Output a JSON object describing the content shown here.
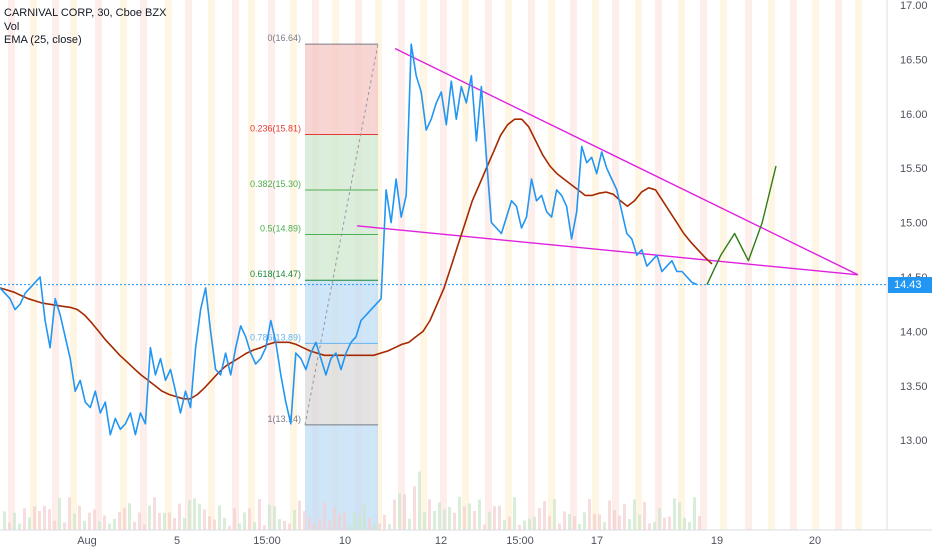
{
  "legend": {
    "title": "CARNIVAL CORP, 30, Cboe BZX",
    "volume": "Vol",
    "ema": "EMA (25, close)"
  },
  "current_price": "14.43",
  "colors": {
    "price": "#2196f3",
    "ema": "#a52a00",
    "trendline": "#e020e0",
    "projection": "#2e7d14",
    "fib_red": "#f4c7c3",
    "fib_green": "#cfe8cf",
    "fib_blue": "#bfdcf6",
    "fib_gray": "#d9d9d9"
  },
  "chart_data": {
    "type": "line",
    "title": "CARNIVAL CORP, 30, Cboe BZX",
    "ylim": [
      12.45,
      17.0
    ],
    "y_ticks": [
      "17.00",
      "16.50",
      "16.00",
      "15.50",
      "15.00",
      "14.50",
      "14.00",
      "13.50",
      "13.00"
    ],
    "x_ticks": [
      "Aug",
      "5",
      "15:00",
      "10",
      "12",
      "15:00",
      "17",
      "19",
      "20"
    ],
    "fib_levels": [
      {
        "label": "0(16.64)",
        "value": 16.64
      },
      {
        "label": "0.236(15.81)",
        "value": 15.81
      },
      {
        "label": "0.382(15.30)",
        "value": 15.3
      },
      {
        "label": "0.5(14.89)",
        "value": 14.89
      },
      {
        "label": "0.618(14.47)",
        "value": 14.47
      },
      {
        "label": "0.786(13.89)",
        "value": 13.89
      },
      {
        "label": "1(13.14)",
        "value": 13.14
      }
    ],
    "series": [
      {
        "name": "CARNIVAL CORP",
        "values": [
          14.4,
          14.35,
          14.3,
          14.2,
          14.25,
          14.35,
          14.4,
          14.45,
          14.5,
          14.1,
          13.85,
          14.3,
          14.15,
          13.95,
          13.75,
          13.45,
          13.55,
          13.35,
          13.3,
          13.45,
          13.25,
          13.35,
          13.05,
          13.2,
          13.1,
          13.15,
          13.25,
          13.05,
          13.25,
          13.15,
          13.85,
          13.6,
          13.75,
          13.55,
          13.65,
          13.45,
          13.25,
          13.45,
          13.3,
          13.85,
          14.2,
          14.4,
          14.0,
          13.65,
          13.6,
          13.8,
          13.6,
          13.85,
          14.05,
          13.95,
          13.8,
          13.7,
          13.75,
          13.85,
          14.1,
          13.9,
          13.6,
          13.35,
          13.15,
          13.8,
          13.75,
          13.65,
          13.8,
          13.9,
          13.75,
          13.6,
          13.75,
          13.8,
          13.65,
          13.8,
          13.9,
          13.95,
          14.1,
          14.15,
          14.2,
          14.25,
          14.3,
          15.3,
          15.0,
          15.4,
          15.05,
          15.25,
          16.64,
          16.35,
          16.2,
          15.85,
          15.95,
          16.1,
          16.2,
          15.9,
          16.3,
          15.95,
          16.25,
          16.1,
          16.35,
          15.75,
          16.25,
          15.6,
          15.0,
          14.95,
          14.9,
          15.05,
          15.2,
          15.15,
          14.95,
          15.05,
          15.4,
          15.2,
          15.25,
          15.1,
          15.05,
          15.3,
          15.25,
          15.15,
          14.85,
          15.1,
          15.7,
          15.55,
          15.6,
          15.45,
          15.65,
          15.5,
          15.4,
          15.3,
          15.1,
          14.9,
          14.85,
          14.7,
          14.75,
          14.6,
          14.65,
          14.7,
          14.55,
          14.6,
          14.65,
          14.55,
          14.55,
          14.5,
          14.45,
          14.43
        ]
      },
      {
        "name": "EMA (25, close)",
        "values": [
          14.4,
          14.38,
          14.36,
          14.33,
          14.3,
          14.28,
          14.26,
          14.25,
          14.24,
          14.23,
          14.22,
          14.2,
          14.15,
          14.08,
          14.0,
          13.92,
          13.85,
          13.78,
          13.72,
          13.66,
          13.6,
          13.55,
          13.5,
          13.45,
          13.42,
          13.4,
          13.38,
          13.38,
          13.42,
          13.48,
          13.55,
          13.62,
          13.68,
          13.72,
          13.76,
          13.8,
          13.83,
          13.85,
          13.88,
          13.9,
          13.9,
          13.9,
          13.88,
          13.85,
          13.82,
          13.8,
          13.78,
          13.78,
          13.78,
          13.78,
          13.78,
          13.78,
          13.78,
          13.78,
          13.8,
          13.82,
          13.85,
          13.88,
          13.9,
          13.95,
          14.0,
          14.1,
          14.25,
          14.4,
          14.6,
          14.8,
          15.0,
          15.2,
          15.35,
          15.5,
          15.65,
          15.8,
          15.9,
          15.95,
          15.95,
          15.88,
          15.75,
          15.62,
          15.52,
          15.45,
          15.4,
          15.35,
          15.3,
          15.25,
          15.25,
          15.27,
          15.28,
          15.26,
          15.2,
          15.15,
          15.2,
          15.28,
          15.32,
          15.3,
          15.2,
          15.1,
          15.0,
          14.9,
          14.82,
          14.75,
          14.68,
          14.62
        ]
      },
      {
        "name": "projection",
        "values": [
          14.43,
          14.7,
          14.9,
          14.65,
          15.0,
          15.52
        ]
      }
    ]
  }
}
